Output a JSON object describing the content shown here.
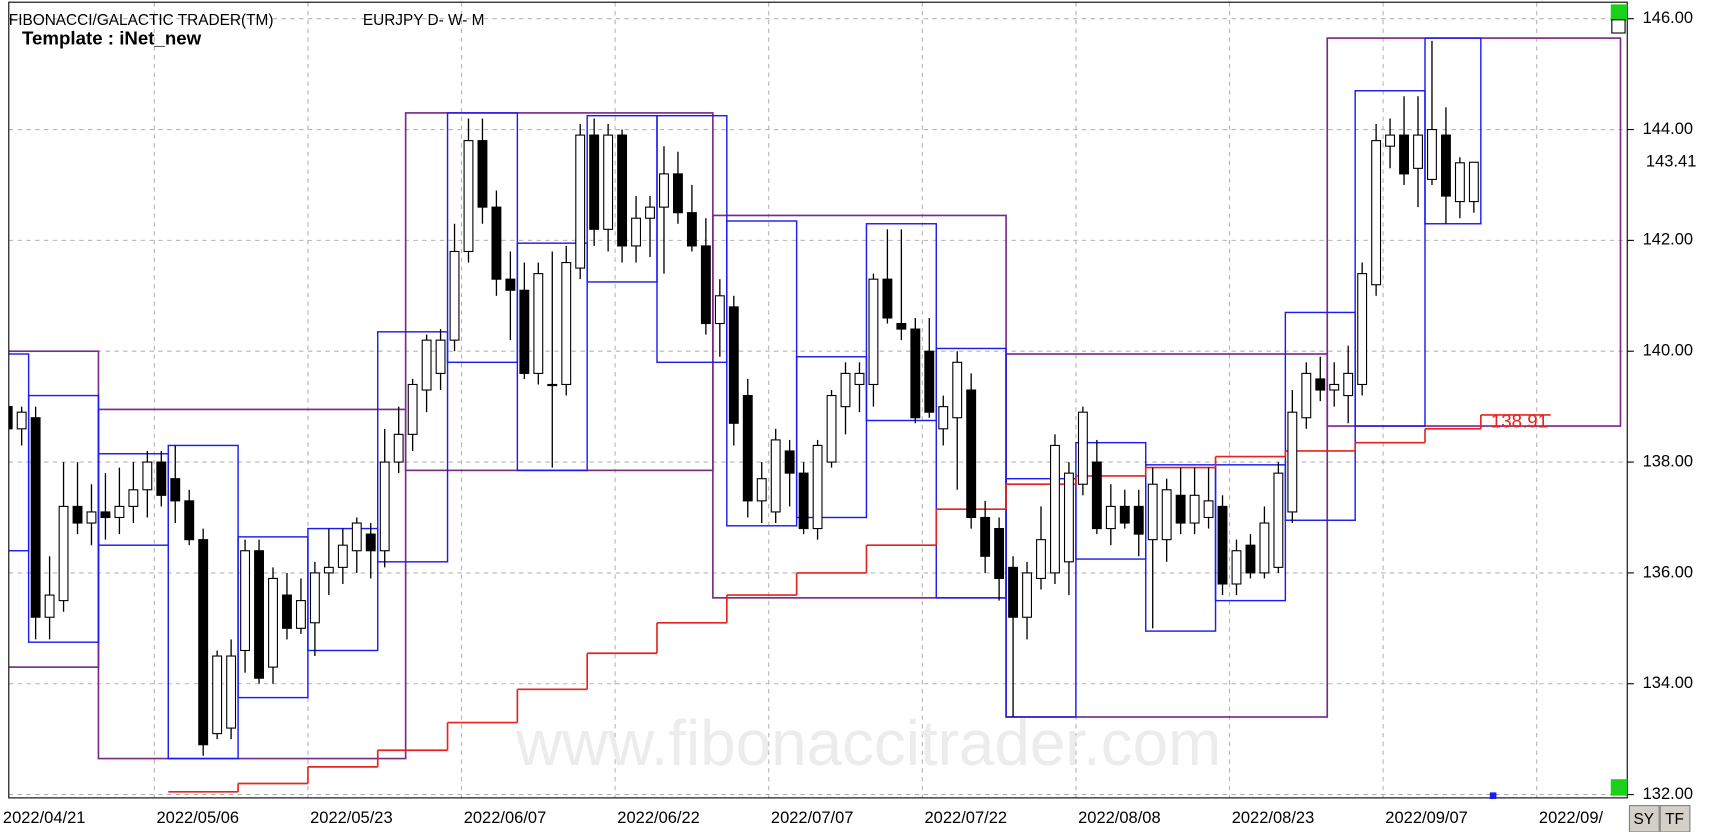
{
  "chart_data": {
    "type": "candlestick",
    "title": "FIBONACCI/GALACTIC TRADER(TM)",
    "subtitle": "EURJPY D- W- M",
    "template": "Template : iNet_new",
    "watermark": "www.fibonaccitrader.com",
    "buttons": [
      "SY",
      "TF"
    ],
    "ylim": [
      132,
      146
    ],
    "yticks": [
      {
        "value": 132,
        "label": "132.00"
      },
      {
        "value": 134,
        "label": "134.00"
      },
      {
        "value": 136,
        "label": "136.00"
      },
      {
        "value": 138,
        "label": "138.00"
      },
      {
        "value": 140,
        "label": "140.00"
      },
      {
        "value": 142,
        "label": "142.00"
      },
      {
        "value": 144,
        "label": "144.00"
      },
      {
        "value": 146,
        "label": "146.00"
      }
    ],
    "grid": true,
    "last_price": 143.41,
    "stop_value": 138.91,
    "up_color": "#ffffff",
    "down_color": "#000000",
    "weekly_color": "#1c1cf0",
    "monthly_color": "#7a2a8a",
    "stop_color": "#e8221e",
    "categories": [
      "2022/04/21",
      null,
      null,
      null,
      null,
      null,
      null,
      null,
      null,
      null,
      null,
      "2022/05/06",
      null,
      null,
      null,
      null,
      null,
      null,
      null,
      null,
      null,
      null,
      "2022/05/23",
      null,
      null,
      null,
      null,
      null,
      null,
      null,
      null,
      null,
      null,
      "2022/06/07",
      null,
      null,
      null,
      null,
      null,
      null,
      null,
      null,
      null,
      null,
      "2022/06/22",
      null,
      null,
      null,
      null,
      null,
      null,
      null,
      null,
      null,
      null,
      "2022/07/07",
      null,
      null,
      null,
      null,
      null,
      null,
      null,
      null,
      null,
      null,
      "2022/07/22",
      null,
      null,
      null,
      null,
      null,
      null,
      null,
      null,
      null,
      null,
      "2022/08/08",
      null,
      null,
      null,
      null,
      null,
      null,
      null,
      null,
      null,
      null,
      "2022/08/23",
      null,
      null,
      null,
      null,
      null,
      null,
      null,
      null,
      null,
      null,
      "2022/09/07",
      null,
      null,
      null,
      null,
      null,
      null,
      null,
      null,
      null,
      null,
      "2022/09/",
      null,
      null,
      null,
      null,
      null,
      null
    ],
    "candles": [
      [
        139.0,
        139.4,
        138.4,
        138.6
      ],
      [
        138.6,
        139.0,
        138.3,
        138.9
      ],
      [
        138.8,
        139.0,
        134.8,
        135.2
      ],
      [
        135.2,
        136.3,
        134.8,
        135.6
      ],
      [
        135.5,
        138.0,
        135.3,
        137.2
      ],
      [
        137.2,
        138.0,
        136.7,
        136.9
      ],
      [
        136.9,
        137.6,
        136.5,
        137.1
      ],
      [
        137.1,
        137.8,
        136.6,
        137.0
      ],
      [
        137.0,
        137.9,
        136.7,
        137.2
      ],
      [
        137.2,
        138.0,
        136.9,
        137.5
      ],
      [
        137.5,
        138.2,
        137.0,
        138.0
      ],
      [
        138.0,
        138.2,
        137.2,
        137.4
      ],
      [
        137.7,
        138.3,
        136.9,
        137.3
      ],
      [
        137.3,
        137.5,
        136.5,
        136.6
      ],
      [
        136.6,
        136.8,
        132.7,
        132.9
      ],
      [
        133.1,
        134.6,
        133.0,
        134.5
      ],
      [
        133.2,
        134.8,
        133.0,
        134.5
      ],
      [
        134.6,
        136.6,
        134.2,
        136.4
      ],
      [
        136.4,
        136.6,
        134.0,
        134.1
      ],
      [
        134.3,
        136.1,
        134.0,
        135.9
      ],
      [
        135.6,
        136.0,
        134.8,
        135.0
      ],
      [
        135.0,
        135.9,
        134.9,
        135.5
      ],
      [
        135.1,
        136.2,
        134.5,
        136.0
      ],
      [
        136.0,
        136.8,
        135.6,
        136.1
      ],
      [
        136.1,
        136.8,
        135.8,
        136.5
      ],
      [
        136.4,
        137.0,
        136.0,
        136.9
      ],
      [
        136.7,
        136.9,
        135.9,
        136.4
      ],
      [
        136.4,
        138.6,
        136.1,
        138.0
      ],
      [
        138.0,
        139.0,
        137.8,
        138.5
      ],
      [
        138.5,
        139.5,
        138.2,
        139.4
      ],
      [
        139.3,
        140.3,
        138.9,
        140.2
      ],
      [
        139.6,
        140.4,
        139.3,
        140.2
      ],
      [
        140.2,
        142.3,
        140.0,
        141.8
      ],
      [
        141.8,
        144.2,
        141.6,
        143.8
      ],
      [
        143.8,
        144.2,
        142.3,
        142.6
      ],
      [
        142.6,
        142.9,
        141.0,
        141.3
      ],
      [
        141.3,
        141.8,
        140.2,
        141.1
      ],
      [
        141.1,
        141.6,
        139.5,
        139.6
      ],
      [
        139.6,
        141.6,
        139.4,
        141.4
      ],
      [
        139.4,
        141.8,
        137.9,
        139.4
      ],
      [
        139.4,
        141.9,
        139.2,
        141.6
      ],
      [
        141.5,
        144.1,
        141.3,
        143.9
      ],
      [
        143.9,
        144.2,
        141.9,
        142.2
      ],
      [
        142.2,
        144.1,
        141.8,
        143.9
      ],
      [
        143.9,
        144.0,
        141.6,
        141.9
      ],
      [
        141.9,
        142.8,
        141.6,
        142.4
      ],
      [
        142.4,
        142.8,
        141.7,
        142.6
      ],
      [
        142.6,
        143.7,
        141.4,
        143.2
      ],
      [
        143.2,
        143.6,
        142.3,
        142.5
      ],
      [
        142.5,
        143.0,
        141.8,
        141.9
      ],
      [
        141.9,
        142.4,
        140.3,
        140.5
      ],
      [
        140.5,
        141.3,
        139.9,
        141.0
      ],
      [
        140.8,
        141.0,
        138.3,
        138.7
      ],
      [
        139.2,
        139.5,
        137.0,
        137.3
      ],
      [
        137.3,
        138.0,
        136.9,
        137.7
      ],
      [
        137.1,
        138.6,
        136.9,
        138.4
      ],
      [
        138.2,
        138.4,
        137.2,
        137.8
      ],
      [
        137.8,
        138.0,
        136.7,
        136.8
      ],
      [
        136.8,
        138.4,
        136.6,
        138.3
      ],
      [
        138.0,
        139.3,
        137.9,
        139.2
      ],
      [
        139.0,
        139.8,
        138.5,
        139.6
      ],
      [
        139.4,
        139.8,
        138.9,
        139.6
      ],
      [
        139.4,
        141.4,
        139.0,
        141.3
      ],
      [
        141.3,
        142.2,
        140.5,
        140.6
      ],
      [
        140.5,
        142.2,
        140.2,
        140.4
      ],
      [
        140.4,
        140.6,
        138.7,
        138.8
      ],
      [
        140.0,
        140.6,
        138.8,
        138.9
      ],
      [
        138.6,
        139.2,
        138.3,
        139.0
      ],
      [
        138.8,
        140.0,
        137.5,
        139.8
      ],
      [
        139.3,
        139.6,
        136.8,
        137.0
      ],
      [
        137.0,
        137.3,
        136.0,
        136.3
      ],
      [
        136.8,
        137.0,
        135.5,
        135.9
      ],
      [
        136.1,
        136.3,
        133.4,
        135.2
      ],
      [
        135.2,
        136.2,
        134.8,
        136.0
      ],
      [
        135.9,
        137.2,
        135.7,
        136.6
      ],
      [
        136.0,
        138.5,
        135.8,
        138.3
      ],
      [
        136.2,
        138.0,
        135.6,
        137.8
      ],
      [
        137.6,
        139.0,
        137.4,
        138.9
      ],
      [
        138.0,
        138.4,
        136.7,
        136.8
      ],
      [
        136.8,
        137.6,
        136.5,
        137.2
      ],
      [
        137.2,
        137.5,
        136.8,
        136.9
      ],
      [
        137.2,
        137.5,
        136.3,
        136.7
      ],
      [
        136.6,
        137.9,
        135.0,
        137.6
      ],
      [
        136.6,
        137.7,
        136.2,
        137.5
      ],
      [
        137.4,
        137.9,
        136.7,
        136.9
      ],
      [
        136.9,
        137.9,
        136.7,
        137.4
      ],
      [
        137.0,
        137.9,
        136.8,
        137.3
      ],
      [
        137.2,
        137.4,
        135.6,
        135.8
      ],
      [
        135.8,
        136.6,
        135.6,
        136.4
      ],
      [
        136.5,
        136.7,
        135.9,
        136.0
      ],
      [
        136.0,
        137.2,
        135.9,
        136.9
      ],
      [
        136.1,
        138.0,
        136.0,
        137.8
      ],
      [
        137.1,
        139.3,
        136.9,
        138.9
      ],
      [
        138.8,
        139.8,
        138.6,
        139.6
      ],
      [
        139.5,
        139.9,
        139.1,
        139.3
      ],
      [
        139.3,
        139.8,
        139.0,
        139.4
      ],
      [
        139.2,
        140.1,
        138.7,
        139.6
      ],
      [
        139.4,
        141.6,
        139.2,
        141.4
      ],
      [
        141.2,
        144.1,
        141.0,
        143.8
      ],
      [
        143.7,
        144.2,
        143.3,
        143.9
      ],
      [
        143.9,
        144.6,
        143.0,
        143.2
      ],
      [
        143.3,
        144.6,
        142.6,
        143.9
      ],
      [
        143.1,
        145.6,
        143.0,
        144.0
      ],
      [
        143.9,
        144.4,
        142.3,
        142.8
      ],
      [
        142.7,
        143.5,
        142.4,
        143.4
      ],
      [
        142.7,
        143.4,
        142.5,
        143.41
      ],
      null,
      null,
      null,
      null,
      null,
      null,
      null,
      null,
      null,
      null,
      null
    ],
    "monthly_boxes": [
      {
        "from": 0,
        "to": 6,
        "high": 140.0,
        "low": 134.3
      },
      {
        "from": 7,
        "to": 28,
        "high": 138.95,
        "low": 132.65
      },
      {
        "from": 29,
        "to": 50,
        "high": 144.3,
        "low": 137.85
      },
      {
        "from": 51,
        "to": 71,
        "high": 142.45,
        "low": 135.55
      },
      {
        "from": 72,
        "to": 94,
        "high": 139.95,
        "low": 133.4
      },
      {
        "from": 95,
        "to": 115,
        "high": 145.65,
        "low": 138.65
      }
    ],
    "weekly_boxes": [
      {
        "from": 0,
        "to": 1,
        "high": 139.95,
        "low": 136.4
      },
      {
        "from": 2,
        "to": 6,
        "high": 139.2,
        "low": 134.75
      },
      {
        "from": 7,
        "to": 11,
        "high": 138.15,
        "low": 136.5
      },
      {
        "from": 12,
        "to": 16,
        "high": 138.3,
        "low": 132.65
      },
      {
        "from": 17,
        "to": 21,
        "high": 136.65,
        "low": 133.75
      },
      {
        "from": 22,
        "to": 26,
        "high": 136.8,
        "low": 134.6
      },
      {
        "from": 27,
        "to": 31,
        "high": 140.35,
        "low": 136.2
      },
      {
        "from": 32,
        "to": 36,
        "high": 144.3,
        "low": 139.8
      },
      {
        "from": 37,
        "to": 41,
        "high": 141.95,
        "low": 137.85
      },
      {
        "from": 42,
        "to": 46,
        "high": 144.25,
        "low": 141.25
      },
      {
        "from": 47,
        "to": 51,
        "high": 144.25,
        "low": 139.8
      },
      {
        "from": 52,
        "to": 56,
        "high": 142.35,
        "low": 136.85
      },
      {
        "from": 57,
        "to": 61,
        "high": 139.9,
        "low": 137.0
      },
      {
        "from": 62,
        "to": 66,
        "high": 142.3,
        "low": 138.75
      },
      {
        "from": 67,
        "to": 71,
        "high": 140.05,
        "low": 135.55
      },
      {
        "from": 72,
        "to": 76,
        "high": 137.7,
        "low": 133.4
      },
      {
        "from": 77,
        "to": 81,
        "high": 138.35,
        "low": 136.25
      },
      {
        "from": 82,
        "to": 86,
        "high": 137.95,
        "low": 134.95
      },
      {
        "from": 87,
        "to": 91,
        "high": 137.95,
        "low": 135.5
      },
      {
        "from": 92,
        "to": 96,
        "high": 140.7,
        "low": 136.95
      },
      {
        "from": 97,
        "to": 101,
        "high": 144.7,
        "low": 138.65
      },
      {
        "from": 102,
        "to": 105,
        "high": 145.65,
        "low": 142.3
      }
    ],
    "stop_steps": [
      {
        "from": 12,
        "to": 16,
        "value": 132.05
      },
      {
        "from": 17,
        "to": 21,
        "value": 132.2
      },
      {
        "from": 22,
        "to": 26,
        "value": 132.5
      },
      {
        "from": 27,
        "to": 31,
        "value": 132.8
      },
      {
        "from": 32,
        "to": 36,
        "value": 133.3
      },
      {
        "from": 37,
        "to": 41,
        "value": 133.9
      },
      {
        "from": 42,
        "to": 46,
        "value": 134.55
      },
      {
        "from": 47,
        "to": 51,
        "value": 135.1
      },
      {
        "from": 52,
        "to": 56,
        "value": 135.6
      },
      {
        "from": 57,
        "to": 61,
        "value": 136.0
      },
      {
        "from": 62,
        "to": 66,
        "value": 136.5
      },
      {
        "from": 67,
        "to": 71,
        "value": 137.15
      },
      {
        "from": 72,
        "to": 76,
        "value": 137.6
      },
      {
        "from": 77,
        "to": 81,
        "value": 137.75
      },
      {
        "from": 82,
        "to": 86,
        "value": 137.9
      },
      {
        "from": 87,
        "to": 91,
        "value": 138.1
      },
      {
        "from": 92,
        "to": 96,
        "value": 138.2
      },
      {
        "from": 97,
        "to": 101,
        "value": 138.35
      },
      {
        "from": 102,
        "to": 105,
        "value": 138.6
      },
      {
        "from": 106,
        "to": 110,
        "value": 138.85
      }
    ]
  }
}
